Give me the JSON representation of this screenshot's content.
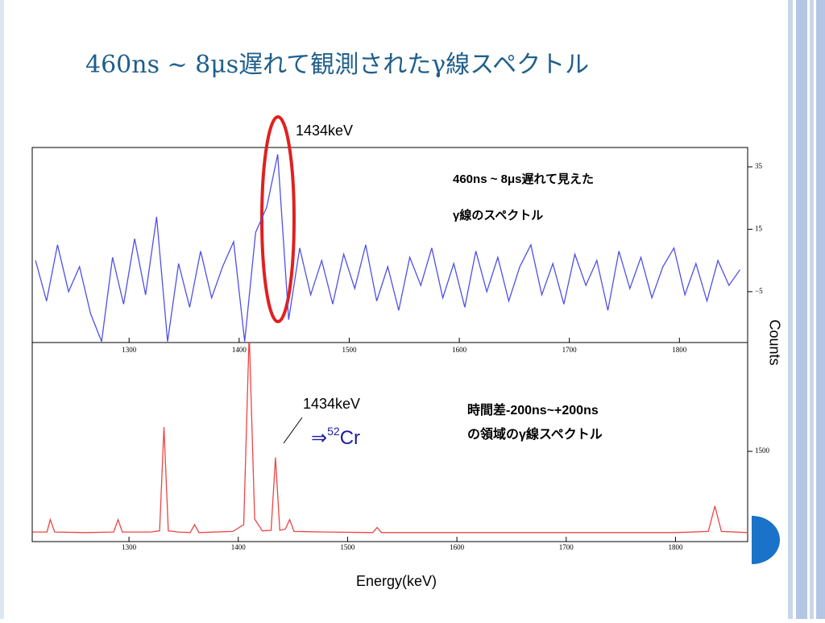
{
  "slide_title": "460ns ~ 8μs遅れて観測されたγ線スペクトル",
  "y_label": "Counts",
  "x_label": "Energy(keV)",
  "chart_data": [
    {
      "type": "line",
      "color": "#5050e6",
      "annotations": [
        "1434keV",
        "460ns ~ 8μs遅れて見えた",
        "γ線のスペクトル"
      ],
      "xlim": [
        1212,
        1862
      ],
      "xticks": [
        1300,
        1400,
        1500,
        1600,
        1700,
        1800
      ],
      "ylim": [
        -21.3,
        41.2
      ],
      "yticks": [
        {
          "value": -5,
          "label": "−5"
        },
        15,
        35
      ],
      "x": [
        1215,
        1225,
        1235,
        1245,
        1255,
        1265,
        1275,
        1285,
        1295,
        1305,
        1315,
        1325,
        1335,
        1345,
        1355,
        1365,
        1375,
        1385,
        1395,
        1405,
        1415,
        1425,
        1435,
        1445,
        1455,
        1465,
        1475,
        1485,
        1495,
        1505,
        1515,
        1525,
        1535,
        1545,
        1555,
        1565,
        1575,
        1585,
        1595,
        1605,
        1615,
        1625,
        1635,
        1645,
        1655,
        1665,
        1675,
        1685,
        1695,
        1705,
        1715,
        1725,
        1735,
        1745,
        1755,
        1765,
        1775,
        1785,
        1795,
        1805,
        1815,
        1825,
        1835,
        1845,
        1855
      ],
      "values": [
        5,
        -8,
        10,
        -5,
        3,
        -12,
        -21,
        6,
        -9,
        12,
        -6,
        19,
        -21,
        4,
        -10,
        8,
        -7,
        3,
        11,
        -21,
        14,
        22,
        39,
        -14,
        9,
        -6,
        5,
        -9,
        7,
        -4,
        10,
        -8,
        3,
        -11,
        6,
        -3,
        9,
        -7,
        4,
        -10,
        8,
        -5,
        6,
        -8,
        3,
        10,
        -6,
        4,
        -9,
        7,
        -3,
        5,
        -11,
        8,
        -4,
        6,
        -7,
        3,
        9,
        -6,
        4,
        -8,
        5,
        -3,
        2
      ]
    },
    {
      "type": "line",
      "color": "#ee4444",
      "annotations": [
        "1434keV",
        "時間差-200ns~+200ns",
        "の領域のγ線スペクトル"
      ],
      "label_parts": [
        "⇒",
        "52",
        "Cr"
      ],
      "xlim": [
        1211.5,
        1866
      ],
      "xticks": [
        1300,
        1400,
        1500,
        1600,
        1700,
        1800
      ],
      "ylim": [
        -100,
        3430
      ],
      "yticks": [
        1500
      ],
      "x": [
        1212,
        1225,
        1228,
        1232,
        1260,
        1286,
        1290,
        1294,
        1320,
        1328,
        1332,
        1336,
        1345,
        1356,
        1360,
        1364,
        1395,
        1405,
        1410,
        1415,
        1422,
        1430,
        1434,
        1438,
        1443,
        1447,
        1451,
        1480,
        1523,
        1527,
        1531,
        1600,
        1700,
        1800,
        1830,
        1836,
        1842,
        1866
      ],
      "values": [
        70,
        70,
        290,
        70,
        60,
        70,
        290,
        70,
        70,
        90,
        1930,
        90,
        70,
        60,
        200,
        60,
        80,
        200,
        3600,
        300,
        90,
        100,
        1390,
        100,
        120,
        290,
        80,
        70,
        60,
        150,
        60,
        60,
        60,
        60,
        80,
        530,
        80,
        60
      ]
    }
  ]
}
